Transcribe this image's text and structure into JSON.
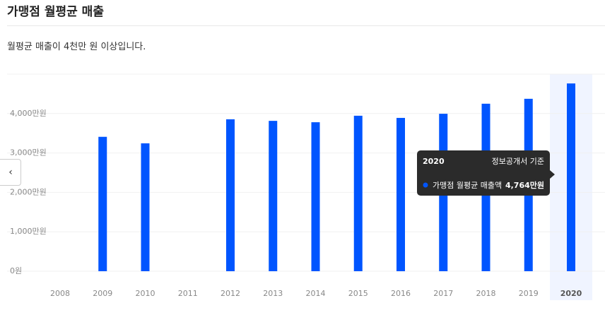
{
  "header": {
    "title": "가맹점 월평균 매출",
    "subtitle": "월평균 매출이 4천만 원 이상입니다."
  },
  "chart_data": {
    "type": "bar",
    "categories": [
      "2008",
      "2009",
      "2010",
      "2011",
      "2012",
      "2013",
      "2014",
      "2015",
      "2016",
      "2017",
      "2018",
      "2019",
      "2020"
    ],
    "series": [
      {
        "name": "가맹점 월평균 매출액",
        "color": "#0055ff",
        "values": [
          null,
          3410,
          3245,
          null,
          3855,
          3815,
          3780,
          3945,
          3890,
          3995,
          4250,
          4375,
          4764
        ],
        "value_labels": [
          null,
          null,
          null,
          null,
          null,
          null,
          null,
          null,
          null,
          null,
          null,
          null,
          "4,764만원"
        ]
      }
    ],
    "ylim": [
      0,
      5000
    ],
    "yticks": [
      {
        "value": 0,
        "label": "0원"
      },
      {
        "value": 1000,
        "label": "1,000만원"
      },
      {
        "value": 2000,
        "label": "2,000만원"
      },
      {
        "value": 3000,
        "label": "3,000만원"
      },
      {
        "value": 4000,
        "label": "4,000만원"
      }
    ],
    "grid": true,
    "tooltip_note": "정보공개서 기준"
  }
}
